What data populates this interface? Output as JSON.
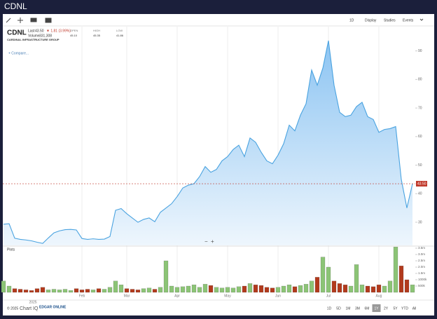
{
  "header": {
    "title": "CDNL"
  },
  "toolbar": {
    "items": [
      "1D",
      "Display",
      "Studies",
      "Events"
    ]
  },
  "quote": {
    "symbol": "CDNL",
    "last_label": "Last",
    "last": "43.50",
    "change": "▼ 1.81 (3.99%)",
    "volume_label": "Volume",
    "volume": "331,308",
    "stats": [
      {
        "label": "OPEN",
        "value": "45.10"
      },
      {
        "label": "HIGH",
        "value": "45.35"
      },
      {
        "label": "LOW",
        "value": "41.86"
      }
    ],
    "company": "CARDINAL INFRASTRUCTURE GROUP",
    "compare": "+ Compare..."
  },
  "chart_data": [
    {
      "type": "area",
      "color": "#4aa3e0",
      "year_label": "2025",
      "last_price_label": "43.50",
      "categories": [
        null,
        null,
        null,
        null,
        null,
        null,
        null,
        null,
        null,
        null,
        null,
        null,
        null,
        null,
        "Feb",
        null,
        null,
        null,
        null,
        null,
        null,
        null,
        "Mar",
        null,
        null,
        null,
        null,
        null,
        null,
        null,
        null,
        "Apr",
        null,
        null,
        null,
        null,
        null,
        null,
        null,
        null,
        "May",
        null,
        null,
        null,
        null,
        null,
        null,
        null,
        null,
        "Jun",
        null,
        null,
        null,
        null,
        null,
        null,
        null,
        null,
        "Jul",
        null,
        null,
        null,
        null,
        null,
        null,
        null,
        null,
        "Aug",
        null,
        null,
        null,
        null,
        null,
        null
      ],
      "values": [
        29.3,
        29.5,
        24.4,
        24.0,
        23.8,
        23.5,
        23.0,
        22.6,
        24.5,
        26.3,
        27.0,
        27.4,
        27.5,
        27.3,
        24.3,
        24.0,
        24.2,
        24.0,
        24.1,
        25.0,
        34.2,
        34.8,
        33.0,
        31.5,
        30.0,
        31.0,
        31.5,
        30.2,
        33.5,
        35.0,
        36.5,
        39.0,
        42.0,
        43.0,
        43.5,
        46.0,
        49.5,
        47.5,
        48.5,
        51.5,
        53.0,
        55.5,
        57.0,
        53.0,
        59.5,
        58.0,
        54.5,
        51.5,
        50.5,
        53.5,
        57.5,
        64.0,
        62.0,
        67.5,
        71.5,
        83.3,
        78.0,
        84.0,
        93.6,
        78.0,
        68.5,
        67.0,
        67.5,
        70.5,
        72.0,
        67.0,
        66.0,
        61.5,
        62.5,
        62.8,
        63.5,
        45.0,
        35.0,
        43.5
      ],
      "ylim": [
        21.9,
        98.5
      ],
      "yticks": [
        30,
        40,
        50,
        60,
        70,
        80,
        90
      ],
      "xgrid": true
    },
    {
      "type": "bar",
      "title": "Plots",
      "colors": {
        "up": "#8cc476",
        "down": "#b23a1c"
      },
      "values": [
        900000,
        500000,
        300000,
        250000,
        200000,
        150000,
        300000,
        400000,
        200000,
        250000,
        200000,
        250000,
        150000,
        300000,
        200000,
        250000,
        200000,
        300000,
        250000,
        400000,
        900000,
        600000,
        300000,
        250000,
        200000,
        300000,
        350000,
        250000,
        400000,
        2500000,
        500000,
        400000,
        450000,
        500000,
        600000,
        400000,
        650000,
        550000,
        400000,
        350000,
        400000,
        350000,
        450000,
        500000,
        700000,
        600000,
        550000,
        400000,
        350000,
        400000,
        500000,
        600000,
        450000,
        550000,
        650000,
        900000,
        1200000,
        2800000,
        2000000,
        900000,
        700000,
        600000,
        500000,
        2200000,
        600000,
        500000,
        450000,
        600000,
        500000,
        900000,
        3600000,
        2100000,
        1000000,
        600000
      ],
      "ylim": [
        0,
        3610000
      ],
      "yticks": [
        {
          "value": 500000,
          "label": "500k"
        },
        {
          "value": 1000000,
          "label": "1000k"
        },
        {
          "value": 1500000,
          "label": "1.5m"
        },
        {
          "value": 2000000,
          "label": "2.0m"
        },
        {
          "value": 2500000,
          "label": "2.5m"
        },
        {
          "value": 3000000,
          "label": "3.0m"
        },
        {
          "value": 3500000,
          "label": "3.5m"
        }
      ]
    }
  ],
  "footer": {
    "copyright": "© 2025",
    "brand": "Chart IQ",
    "partner": "EDGAR ONLINE",
    "ranges": [
      "1D",
      "5D",
      "1M",
      "3M",
      "6M",
      "1Y",
      "2Y",
      "5Y",
      "YTD",
      "All"
    ]
  }
}
